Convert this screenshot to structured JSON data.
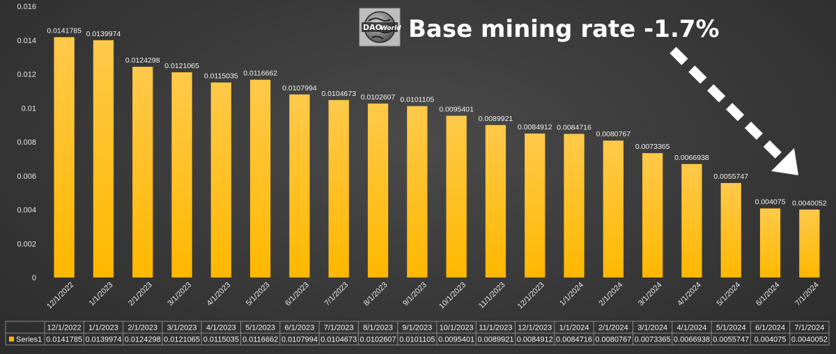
{
  "headline": "Base mining rate -1.7%",
  "logo": {
    "text_left": "DAO",
    "text_right": "World",
    "icon": "globe-icon"
  },
  "colors": {
    "bar_top": "#ffc94a",
    "bar_bottom": "#ffb800",
    "arrow": "#ffffff",
    "table_border": "#8a8a8a"
  },
  "chart_data": {
    "type": "bar",
    "categories": [
      "12/1/2022",
      "1/1/2023",
      "2/1/2023",
      "3/1/2023",
      "4/1/2023",
      "5/1/2023",
      "6/1/2023",
      "7/1/2023",
      "8/1/2023",
      "9/1/2023",
      "10/1/2023",
      "11/1/2023",
      "12/1/2023",
      "1/1/2024",
      "2/1/2024",
      "3/1/2024",
      "4/1/2024",
      "5/1/2024",
      "6/1/2024",
      "7/1/2024"
    ],
    "series": [
      {
        "name": "Series1",
        "values": [
          0.0141785,
          0.0139974,
          0.0124298,
          0.0121065,
          0.0115035,
          0.0116662,
          0.0107994,
          0.0104673,
          0.0102607,
          0.0101105,
          0.0095401,
          0.0089921,
          0.0084912,
          0.0084716,
          0.0080767,
          0.0073365,
          0.0066938,
          0.0055747,
          0.004075,
          0.0040052
        ]
      }
    ],
    "yticks": [
      "0",
      "0.002",
      "0.004",
      "0.006",
      "0.008",
      "0.01",
      "0.012",
      "0.014",
      "0.016"
    ],
    "ylim": [
      0,
      0.016
    ],
    "grid": false,
    "legend": "data-table-bottom"
  }
}
